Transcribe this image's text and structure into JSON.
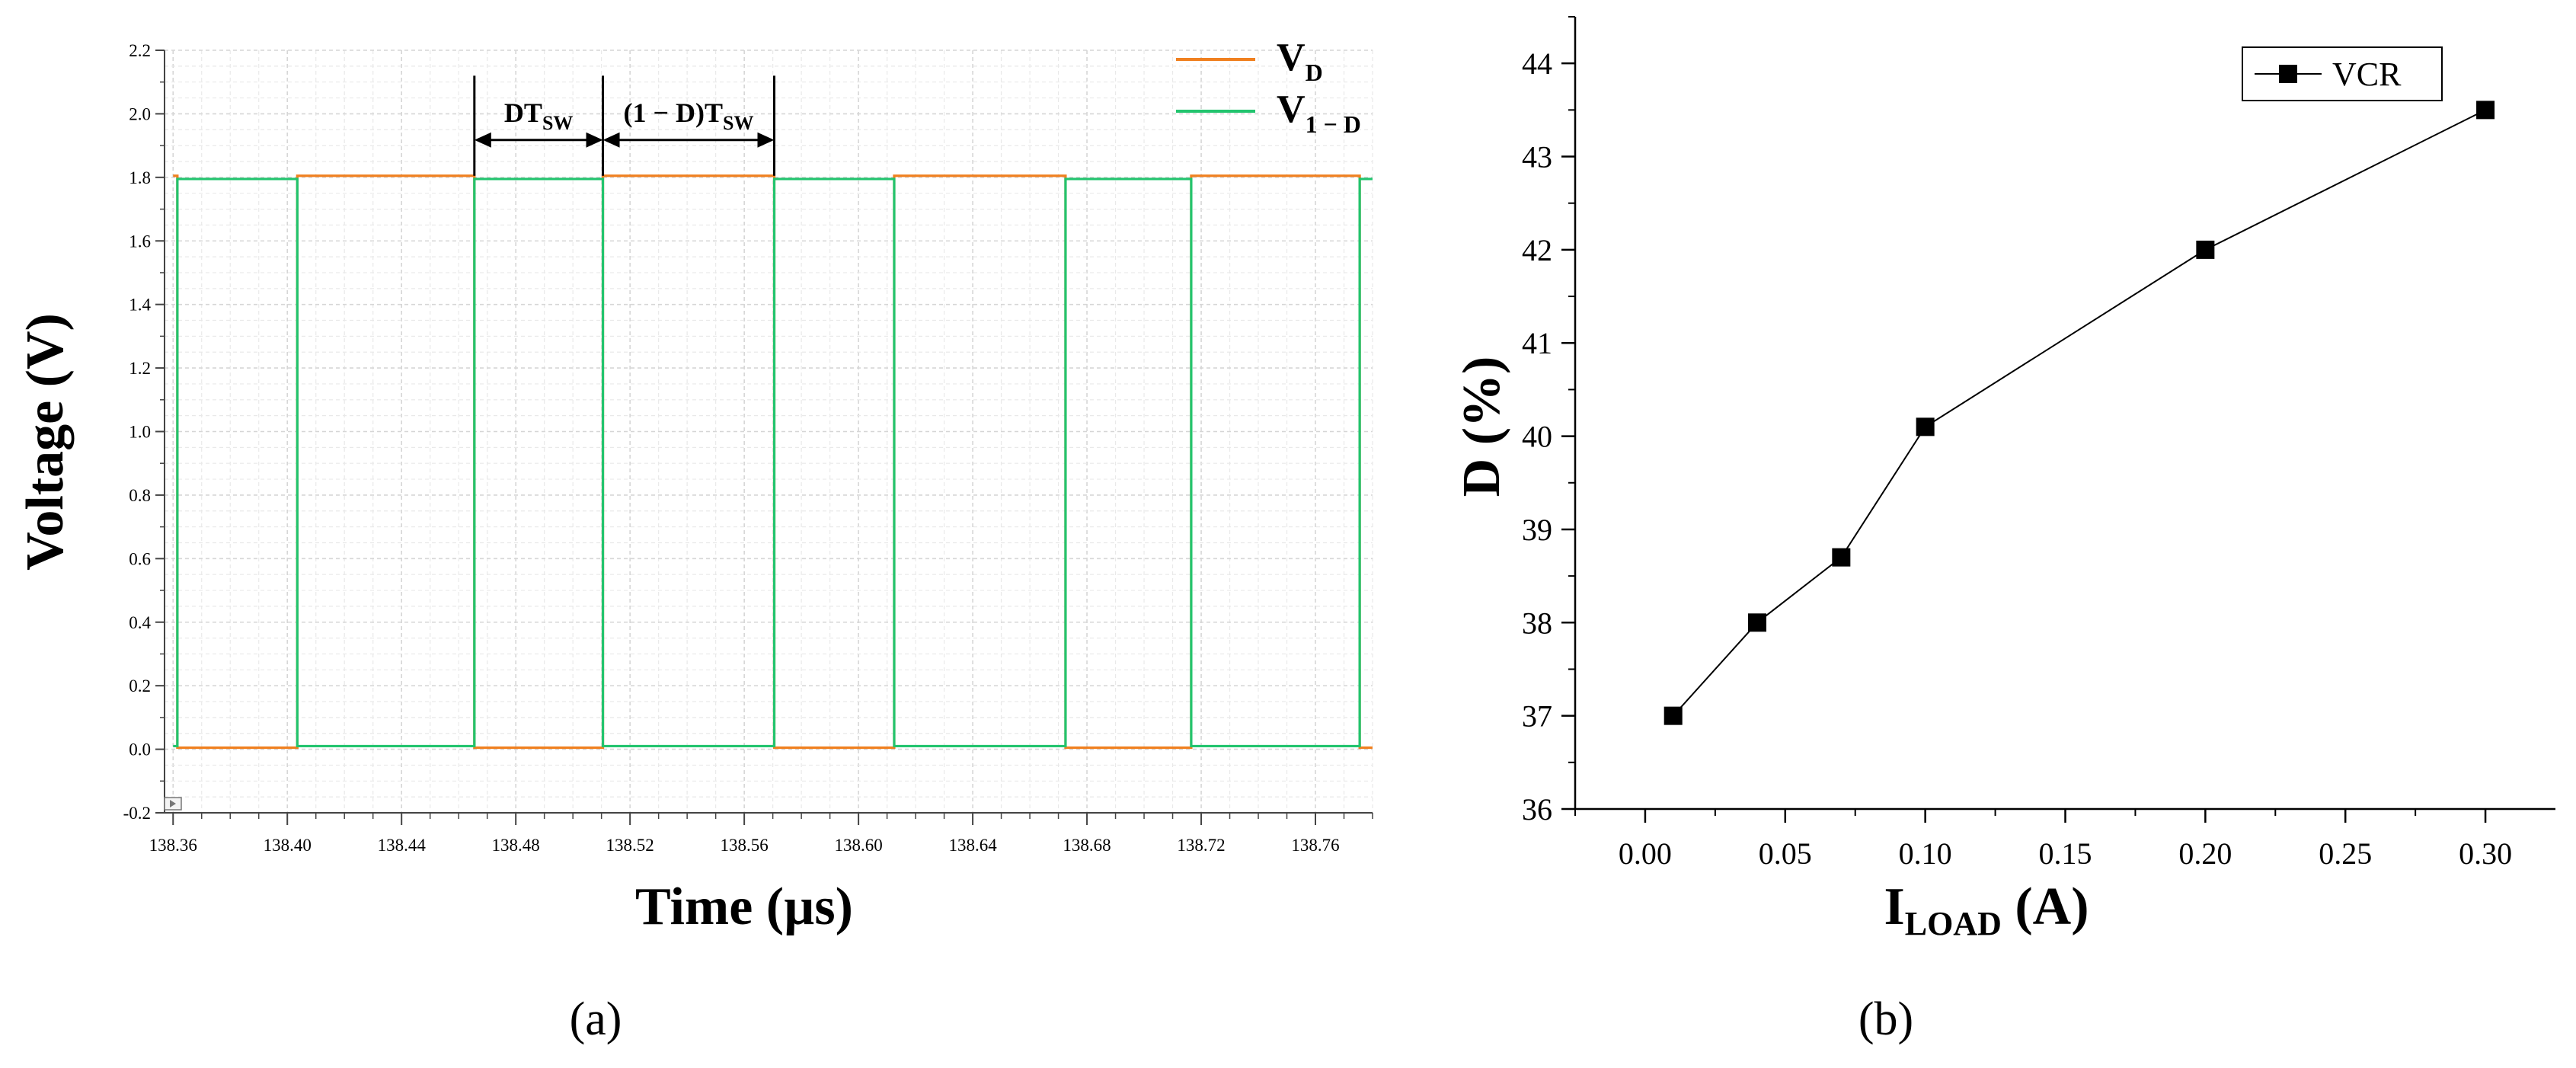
{
  "chart_data": [
    {
      "panel_label": "(a)",
      "type": "line",
      "xlabel": "Time (µs)",
      "ylabel": "Voltage (V)",
      "xlim": [
        138.357,
        138.78
      ],
      "ylim": [
        -0.2,
        2.2
      ],
      "xticks": [
        138.36,
        138.4,
        138.44,
        138.48,
        138.52,
        138.56,
        138.6,
        138.64,
        138.68,
        138.72,
        138.76
      ],
      "xtick_labels": [
        "138.36",
        "138.40",
        "138.44",
        "138.48",
        "138.52",
        "138.56",
        "138.60",
        "138.64",
        "138.68",
        "138.72",
        "138.76"
      ],
      "yticks": [
        -0.2,
        0.0,
        0.2,
        0.4,
        0.6,
        0.8,
        1.0,
        1.2,
        1.4,
        1.6,
        1.8,
        2.0,
        2.2
      ],
      "ytick_labels": [
        "-0.2",
        "0.0",
        "0.2",
        "0.4",
        "0.6",
        "0.8",
        "1.0",
        "1.2",
        "1.4",
        "1.6",
        "1.8",
        "2.0",
        "2.2"
      ],
      "grid": true,
      "legend_position": "top-right",
      "legend": [
        {
          "main": "V",
          "sub": "D",
          "color": "#F08020"
        },
        {
          "main": "V",
          "sub": "1 − D",
          "color": "#22C46E"
        }
      ],
      "series": [
        {
          "key": "VD",
          "color": "#F08020",
          "high": 1.805,
          "low": 0.005,
          "edges": [
            138.3615,
            138.4035,
            138.4655,
            138.5105,
            138.5705,
            138.6125,
            138.6725,
            138.7165,
            138.7755
          ],
          "initial_level": "high"
        },
        {
          "key": "V1D",
          "color": "#22C46E",
          "high": 1.795,
          "low": 0.01,
          "edges": [
            138.3615,
            138.4035,
            138.4655,
            138.5105,
            138.5705,
            138.6125,
            138.6725,
            138.7165,
            138.7755
          ],
          "initial_level": "low"
        }
      ],
      "annotations": [
        {
          "text_main": "DT",
          "text_sub": "SW",
          "x_start": 138.4655,
          "x_end": 138.5105,
          "y": 1.98
        },
        {
          "text_main": "(1 − D)T",
          "text_sub": "SW",
          "x_start": 138.5105,
          "x_end": 138.5705,
          "y": 1.98
        }
      ]
    },
    {
      "panel_label": "(b)",
      "type": "line",
      "xlabel_main": "I",
      "xlabel_sub": "LOAD",
      "xlabel_unit": " (A)",
      "ylabel": "D (%)",
      "xlim": [
        -0.025,
        0.325
      ],
      "ylim": [
        36,
        44.5
      ],
      "xticks": [
        0.0,
        0.05,
        0.1,
        0.15,
        0.2,
        0.25,
        0.3
      ],
      "xtick_labels": [
        "0.00",
        "0.05",
        "0.10",
        "0.15",
        "0.20",
        "0.25",
        "0.30"
      ],
      "yticks": [
        36,
        37,
        38,
        39,
        40,
        41,
        42,
        43,
        44
      ],
      "ytick_labels": [
        "36",
        "37",
        "38",
        "39",
        "40",
        "41",
        "42",
        "43",
        "44"
      ],
      "grid": false,
      "legend_position": "top-right",
      "series": [
        {
          "name": "VCR",
          "marker": "square",
          "color": "#000000",
          "x": [
            0.01,
            0.04,
            0.07,
            0.1,
            0.2,
            0.3
          ],
          "y": [
            37.0,
            38.0,
            38.7,
            40.1,
            42.0,
            43.5
          ]
        }
      ]
    }
  ]
}
